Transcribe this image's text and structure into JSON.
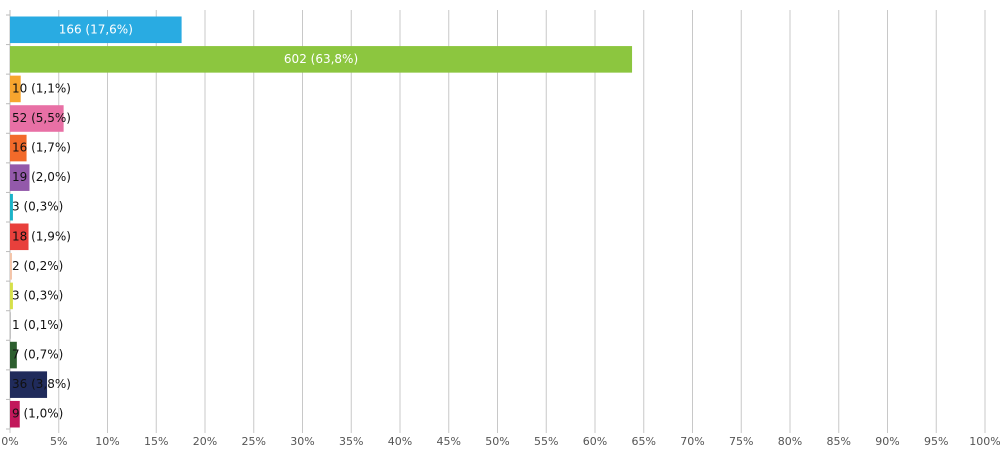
{
  "chart_data": {
    "type": "bar",
    "orientation": "horizontal",
    "categories": [
      null,
      null,
      null,
      null,
      null,
      null,
      null,
      null,
      null,
      null,
      null,
      null,
      null,
      null
    ],
    "values": [
      17.6,
      63.8,
      1.1,
      5.5,
      1.7,
      2.0,
      0.3,
      1.9,
      0.2,
      0.3,
      0.1,
      0.7,
      3.8,
      1.0
    ],
    "value_labels": [
      "166 (17,6%)",
      "602 (63,8%)",
      "10 (1,1%)",
      "52 (5,5%)",
      "16 (1,7%)",
      "19 (2,0%)",
      "3 (0,3%)",
      "18 (1,9%)",
      "2 (0,2%)",
      "3 (0,3%)",
      "1 (0,1%)",
      "7 (0,7%)",
      "36 (3,8%)",
      "9 (1,0%)"
    ],
    "colors": [
      "#29abe2",
      "#8cc63f",
      "#f7a52e",
      "#e870a5",
      "#f26a2a",
      "#9359aa",
      "#1bb3c8",
      "#e8403c",
      "#f4c4a8",
      "#d6e04a",
      "#c0c0c0",
      "#2d5f2f",
      "#202b5b",
      "#c2185b"
    ],
    "xlim": [
      0,
      100
    ],
    "xticks": [
      {
        "value": 0,
        "label": "0%"
      },
      {
        "value": 5,
        "label": "5%"
      },
      {
        "value": 10,
        "label": "10%"
      },
      {
        "value": 15,
        "label": "15%"
      },
      {
        "value": 20,
        "label": "20%"
      },
      {
        "value": 25,
        "label": "25%"
      },
      {
        "value": 30,
        "label": "30%"
      },
      {
        "value": 35,
        "label": "35%"
      },
      {
        "value": 40,
        "label": "40%"
      },
      {
        "value": 45,
        "label": "45%"
      },
      {
        "value": 50,
        "label": "50%"
      },
      {
        "value": 55,
        "label": "55%"
      },
      {
        "value": 60,
        "label": "60%"
      },
      {
        "value": 65,
        "label": "65%"
      },
      {
        "value": 70,
        "label": "70%"
      },
      {
        "value": 75,
        "label": "75%"
      },
      {
        "value": 80,
        "label": "80%"
      },
      {
        "value": 85,
        "label": "85%"
      },
      {
        "value": 90,
        "label": "90%"
      },
      {
        "value": 95,
        "label": "95%"
      },
      {
        "value": 100,
        "label": "100%"
      }
    ],
    "grid": true
  }
}
